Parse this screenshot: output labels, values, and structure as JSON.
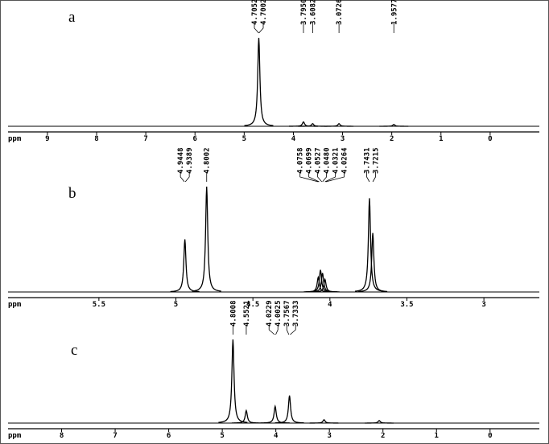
{
  "chart_data": [
    {
      "type": "spectrum",
      "label": "a",
      "x_label": "ppm",
      "xlim": [
        9.8,
        -1
      ],
      "xticks": [
        9,
        8,
        7,
        6,
        5,
        4,
        3,
        2,
        1,
        0
      ],
      "ylim": [
        0,
        100
      ],
      "peaks": {
        "x": [
          4.7027,
          3.795,
          3.6082,
          3.0726,
          1.9577
        ],
        "values": [
          100,
          5,
          3,
          3,
          2
        ]
      },
      "annotations": [
        4.7052,
        4.7002,
        {
          "value": 3.795,
          "label": "3.7950"
        },
        3.6082,
        3.0726,
        1.9577
      ]
    },
    {
      "type": "spectrum",
      "label": "b",
      "x_label": "ppm",
      "xlim": [
        6.09,
        2.64
      ],
      "xticks": [
        5.5,
        5.0,
        4.5,
        4.0,
        3.5,
        3.0
      ],
      "ylim": [
        0,
        100
      ],
      "peaks": {
        "x": [
          4.9418,
          4.8002,
          4.0758,
          4.0613,
          4.048,
          4.0321,
          3.7431,
          3.7215
        ],
        "values": [
          50,
          100,
          14,
          21,
          18,
          12,
          89,
          56
        ]
      },
      "annotations": [
        4.9448,
        4.9389,
        4.8002,
        4.0758,
        4.0699,
        4.0527,
        {
          "value": 4.048,
          "label": "4.0480"
        },
        4.0321,
        4.0264,
        3.7431,
        3.7215
      ]
    },
    {
      "type": "spectrum",
      "label": "c",
      "x_label": "ppm",
      "xlim": [
        9.0,
        -0.92
      ],
      "xticks": [
        8,
        7,
        6,
        5,
        4,
        3,
        2,
        1,
        0
      ],
      "ylim": [
        0,
        100
      ],
      "peaks": {
        "x": [
          4.8008,
          4.5521,
          4.0127,
          3.745,
          3.1,
          2.07
        ],
        "values": [
          100,
          15,
          20,
          33,
          4,
          3
        ]
      },
      "annotations": [
        4.8008,
        4.5521,
        4.0229,
        4.0025,
        3.7567,
        3.7333
      ]
    }
  ]
}
